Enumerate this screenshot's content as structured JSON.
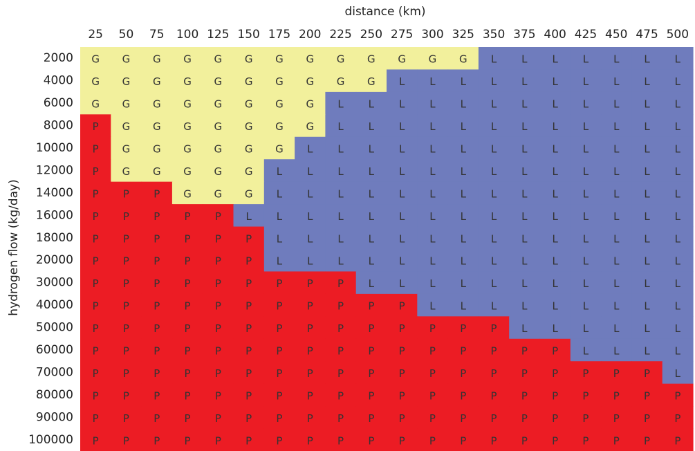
{
  "x_label": "distance (km)",
  "y_label": "hydrogen flow (kg/day)",
  "colors": {
    "G": "#f2f09c",
    "L": "#6f7cbd",
    "P": "#ec1c24"
  },
  "columns": [
    "25",
    "50",
    "75",
    "100",
    "125",
    "150",
    "175",
    "200",
    "225",
    "250",
    "275",
    "300",
    "325",
    "350",
    "375",
    "400",
    "425",
    "450",
    "475",
    "500"
  ],
  "rows": [
    {
      "label": "2000",
      "cells": [
        "G",
        "G",
        "G",
        "G",
        "G",
        "G",
        "G",
        "G",
        "G",
        "G",
        "G",
        "G",
        "G",
        "L",
        "L",
        "L",
        "L",
        "L",
        "L",
        "L"
      ]
    },
    {
      "label": "4000",
      "cells": [
        "G",
        "G",
        "G",
        "G",
        "G",
        "G",
        "G",
        "G",
        "G",
        "G",
        "L",
        "L",
        "L",
        "L",
        "L",
        "L",
        "L",
        "L",
        "L",
        "L"
      ]
    },
    {
      "label": "6000",
      "cells": [
        "G",
        "G",
        "G",
        "G",
        "G",
        "G",
        "G",
        "G",
        "L",
        "L",
        "L",
        "L",
        "L",
        "L",
        "L",
        "L",
        "L",
        "L",
        "L",
        "L"
      ]
    },
    {
      "label": "8000",
      "cells": [
        "P",
        "G",
        "G",
        "G",
        "G",
        "G",
        "G",
        "G",
        "L",
        "L",
        "L",
        "L",
        "L",
        "L",
        "L",
        "L",
        "L",
        "L",
        "L",
        "L"
      ]
    },
    {
      "label": "10000",
      "cells": [
        "P",
        "G",
        "G",
        "G",
        "G",
        "G",
        "G",
        "L",
        "L",
        "L",
        "L",
        "L",
        "L",
        "L",
        "L",
        "L",
        "L",
        "L",
        "L",
        "L"
      ]
    },
    {
      "label": "12000",
      "cells": [
        "P",
        "G",
        "G",
        "G",
        "G",
        "G",
        "L",
        "L",
        "L",
        "L",
        "L",
        "L",
        "L",
        "L",
        "L",
        "L",
        "L",
        "L",
        "L",
        "L"
      ]
    },
    {
      "label": "14000",
      "cells": [
        "P",
        "P",
        "P",
        "G",
        "G",
        "G",
        "L",
        "L",
        "L",
        "L",
        "L",
        "L",
        "L",
        "L",
        "L",
        "L",
        "L",
        "L",
        "L",
        "L"
      ]
    },
    {
      "label": "16000",
      "cells": [
        "P",
        "P",
        "P",
        "P",
        "P",
        "L",
        "L",
        "L",
        "L",
        "L",
        "L",
        "L",
        "L",
        "L",
        "L",
        "L",
        "L",
        "L",
        "L",
        "L"
      ]
    },
    {
      "label": "18000",
      "cells": [
        "P",
        "P",
        "P",
        "P",
        "P",
        "P",
        "L",
        "L",
        "L",
        "L",
        "L",
        "L",
        "L",
        "L",
        "L",
        "L",
        "L",
        "L",
        "L",
        "L"
      ]
    },
    {
      "label": "20000",
      "cells": [
        "P",
        "P",
        "P",
        "P",
        "P",
        "P",
        "L",
        "L",
        "L",
        "L",
        "L",
        "L",
        "L",
        "L",
        "L",
        "L",
        "L",
        "L",
        "L",
        "L"
      ]
    },
    {
      "label": "30000",
      "cells": [
        "P",
        "P",
        "P",
        "P",
        "P",
        "P",
        "P",
        "P",
        "P",
        "L",
        "L",
        "L",
        "L",
        "L",
        "L",
        "L",
        "L",
        "L",
        "L",
        "L"
      ]
    },
    {
      "label": "40000",
      "cells": [
        "P",
        "P",
        "P",
        "P",
        "P",
        "P",
        "P",
        "P",
        "P",
        "P",
        "P",
        "L",
        "L",
        "L",
        "L",
        "L",
        "L",
        "L",
        "L",
        "L"
      ]
    },
    {
      "label": "50000",
      "cells": [
        "P",
        "P",
        "P",
        "P",
        "P",
        "P",
        "P",
        "P",
        "P",
        "P",
        "P",
        "P",
        "P",
        "P",
        "L",
        "L",
        "L",
        "L",
        "L",
        "L"
      ]
    },
    {
      "label": "60000",
      "cells": [
        "P",
        "P",
        "P",
        "P",
        "P",
        "P",
        "P",
        "P",
        "P",
        "P",
        "P",
        "P",
        "P",
        "P",
        "P",
        "P",
        "L",
        "L",
        "L",
        "L"
      ]
    },
    {
      "label": "70000",
      "cells": [
        "P",
        "P",
        "P",
        "P",
        "P",
        "P",
        "P",
        "P",
        "P",
        "P",
        "P",
        "P",
        "P",
        "P",
        "P",
        "P",
        "P",
        "P",
        "P",
        "L"
      ]
    },
    {
      "label": "80000",
      "cells": [
        "P",
        "P",
        "P",
        "P",
        "P",
        "P",
        "P",
        "P",
        "P",
        "P",
        "P",
        "P",
        "P",
        "P",
        "P",
        "P",
        "P",
        "P",
        "P",
        "P"
      ]
    },
    {
      "label": "90000",
      "cells": [
        "P",
        "P",
        "P",
        "P",
        "P",
        "P",
        "P",
        "P",
        "P",
        "P",
        "P",
        "P",
        "P",
        "P",
        "P",
        "P",
        "P",
        "P",
        "P",
        "P"
      ]
    },
    {
      "label": "100000",
      "cells": [
        "P",
        "P",
        "P",
        "P",
        "P",
        "P",
        "P",
        "P",
        "P",
        "P",
        "P",
        "P",
        "P",
        "P",
        "P",
        "P",
        "P",
        "P",
        "P",
        "P"
      ]
    }
  ]
}
